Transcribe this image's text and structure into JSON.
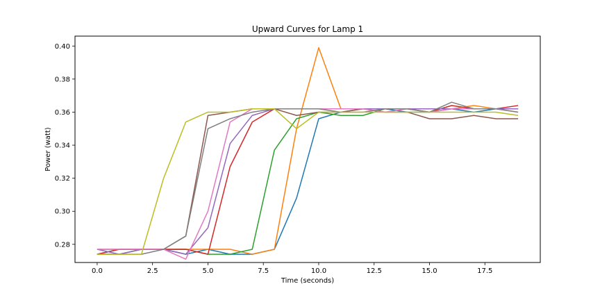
{
  "chart_data": {
    "type": "line",
    "title": "Upward Curves for Lamp 1",
    "xlabel": "Time (seconds)",
    "ylabel": "Power (watt)",
    "xlim": [
      -1,
      20
    ],
    "ylim": [
      0.269,
      0.406
    ],
    "xticks": [
      0.0,
      2.5,
      5.0,
      7.5,
      10.0,
      12.5,
      15.0,
      17.5
    ],
    "xtick_labels": [
      "0.0",
      "2.5",
      "5.0",
      "7.5",
      "10.0",
      "12.5",
      "15.0",
      "17.5"
    ],
    "yticks": [
      0.28,
      0.3,
      0.32,
      0.34,
      0.36,
      0.38,
      0.4
    ],
    "ytick_labels": [
      "0.28",
      "0.30",
      "0.32",
      "0.34",
      "0.36",
      "0.38",
      "0.40"
    ],
    "grid": false,
    "x": [
      0,
      1,
      2,
      3,
      4,
      5,
      6,
      7,
      8,
      9,
      10,
      11,
      12,
      13,
      14,
      15,
      16,
      17,
      18,
      19
    ],
    "series": [
      {
        "color": "#1f77b4",
        "values": [
          0.274,
          0.277,
          0.277,
          0.277,
          0.274,
          0.277,
          0.274,
          0.274,
          0.277,
          0.308,
          0.356,
          0.36,
          0.362,
          0.362,
          0.36,
          0.36,
          0.362,
          0.36,
          0.362,
          0.362
        ]
      },
      {
        "color": "#ff7f0e",
        "values": [
          0.274,
          0.274,
          0.277,
          0.277,
          0.277,
          0.277,
          0.277,
          0.274,
          0.277,
          0.35,
          0.399,
          0.362,
          0.362,
          0.362,
          0.362,
          0.362,
          0.362,
          0.364,
          0.362,
          0.362
        ]
      },
      {
        "color": "#2ca02c",
        "values": [
          0.274,
          0.274,
          0.277,
          0.277,
          0.277,
          0.274,
          0.274,
          0.277,
          0.337,
          0.356,
          0.36,
          0.358,
          0.358,
          0.362,
          0.362,
          0.36,
          0.364,
          0.362,
          0.362,
          0.362
        ]
      },
      {
        "color": "#d62728",
        "values": [
          0.274,
          0.277,
          0.277,
          0.277,
          0.277,
          0.274,
          0.327,
          0.354,
          0.362,
          0.362,
          0.362,
          0.362,
          0.362,
          0.362,
          0.362,
          0.36,
          0.364,
          0.362,
          0.362,
          0.364
        ]
      },
      {
        "color": "#9467bd",
        "values": [
          0.277,
          0.274,
          0.277,
          0.277,
          0.274,
          0.29,
          0.341,
          0.358,
          0.362,
          0.362,
          0.362,
          0.362,
          0.362,
          0.362,
          0.362,
          0.362,
          0.362,
          0.362,
          0.362,
          0.362
        ]
      },
      {
        "color": "#8c564b",
        "values": [
          0.277,
          0.277,
          0.277,
          0.277,
          0.285,
          0.358,
          0.36,
          0.362,
          0.362,
          0.358,
          0.36,
          0.36,
          0.362,
          0.36,
          0.36,
          0.356,
          0.356,
          0.358,
          0.356,
          0.356
        ]
      },
      {
        "color": "#e377c2",
        "values": [
          0.277,
          0.277,
          0.277,
          0.277,
          0.271,
          0.3,
          0.354,
          0.362,
          0.362,
          0.362,
          0.362,
          0.362,
          0.362,
          0.36,
          0.362,
          0.36,
          0.362,
          0.362,
          0.362,
          0.36
        ]
      },
      {
        "color": "#7f7f7f",
        "values": [
          0.274,
          0.274,
          0.274,
          0.277,
          0.285,
          0.35,
          0.356,
          0.36,
          0.362,
          0.362,
          0.362,
          0.36,
          0.36,
          0.362,
          0.362,
          0.36,
          0.366,
          0.362,
          0.362,
          0.36
        ]
      },
      {
        "color": "#bcbd22",
        "values": [
          0.274,
          0.274,
          0.274,
          0.32,
          0.354,
          0.36,
          0.36,
          0.362,
          0.362,
          0.35,
          0.36,
          0.36,
          0.36,
          0.36,
          0.36,
          0.36,
          0.36,
          0.36,
          0.36,
          0.358
        ]
      }
    ]
  }
}
